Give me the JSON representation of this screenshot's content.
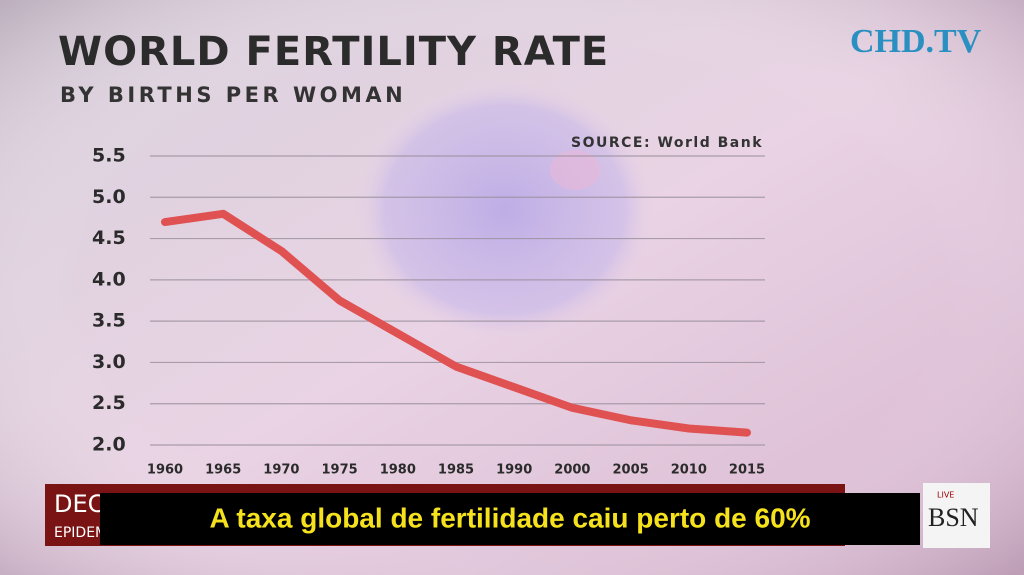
{
  "chart_data": {
    "type": "line",
    "title": "WORLD FERTILITY RATE",
    "subtitle": "BY BIRTHS PER WOMAN",
    "annotation": "SOURCE: World Bank",
    "categories": [
      "1960",
      "1965",
      "1970",
      "1975",
      "1980",
      "1985",
      "1990",
      "2000",
      "2005",
      "2010",
      "2015"
    ],
    "values": [
      4.7,
      4.8,
      4.35,
      3.75,
      3.35,
      2.95,
      2.7,
      2.45,
      2.3,
      2.2,
      2.15
    ],
    "color": "#e05252",
    "ylim": [
      2,
      5.5
    ],
    "yticks": [
      {
        "value": 2,
        "label": "2.0"
      },
      2.5,
      {
        "value": 3,
        "label": "3.0"
      },
      3.5,
      {
        "value": 4,
        "label": "4.0"
      },
      4.5,
      {
        "value": 5,
        "label": "5.0"
      },
      5.5
    ],
    "grid": true
  },
  "overlay": {
    "logo": "CHD.TV",
    "headline": "DEC",
    "subline": "EPIDEM",
    "caption": "A taxa global de fertilidade caiu perto de 60%",
    "live": "LIVE",
    "network": "BSN"
  }
}
